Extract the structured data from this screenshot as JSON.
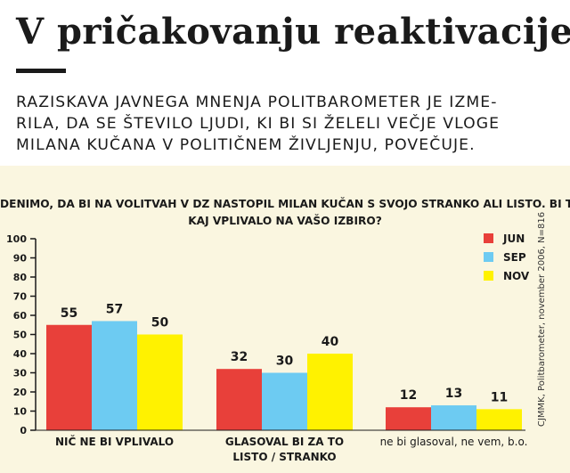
{
  "header": {
    "title": "V pričakovanju reaktivacije",
    "lead_lines": [
      "RAZISKAVA JAVNEGA MNENJA POLITBAROMETER JE IZME-",
      "RILA, DA SE ŠTEVILO LJUDI, KI BI SI ŽELELI VEČJE VLOGE",
      "MILANA KUČANA V POLITIČNEM ŽIVLJENJU, POVEČUJE."
    ]
  },
  "source_note": "CJMMK, Politbarometer, november 2006, N=816",
  "chart_data": {
    "type": "bar",
    "title_lines": [
      "DENIMO, DA BI NA VOLITVAH V DZ NASTOPIL MILAN KUČAN S SVOJO STRANKO ALI LISTO. BI  TO",
      "KAJ VPLIVALO NA VAŠO IZBIRO?"
    ],
    "categories": [
      [
        "NIČ NE BI VPLIVALO"
      ],
      [
        "GLASOVAL BI ZA TO",
        "LISTO / STRANKO"
      ],
      [
        "ne bi glasoval, ne vem, b.o."
      ]
    ],
    "series": [
      {
        "name": "JUN",
        "color": "#e8403a",
        "values": [
          55,
          32,
          12
        ]
      },
      {
        "name": "SEP",
        "color": "#6dcbf2",
        "values": [
          57,
          30,
          13
        ]
      },
      {
        "name": "NOV",
        "color": "#fff200",
        "values": [
          50,
          40,
          11
        ]
      }
    ],
    "ylim": [
      0,
      100
    ],
    "yticks": [
      0,
      10,
      20,
      30,
      40,
      50,
      60,
      70,
      80,
      90,
      100
    ],
    "legend_position": "top-right",
    "grid": false
  }
}
